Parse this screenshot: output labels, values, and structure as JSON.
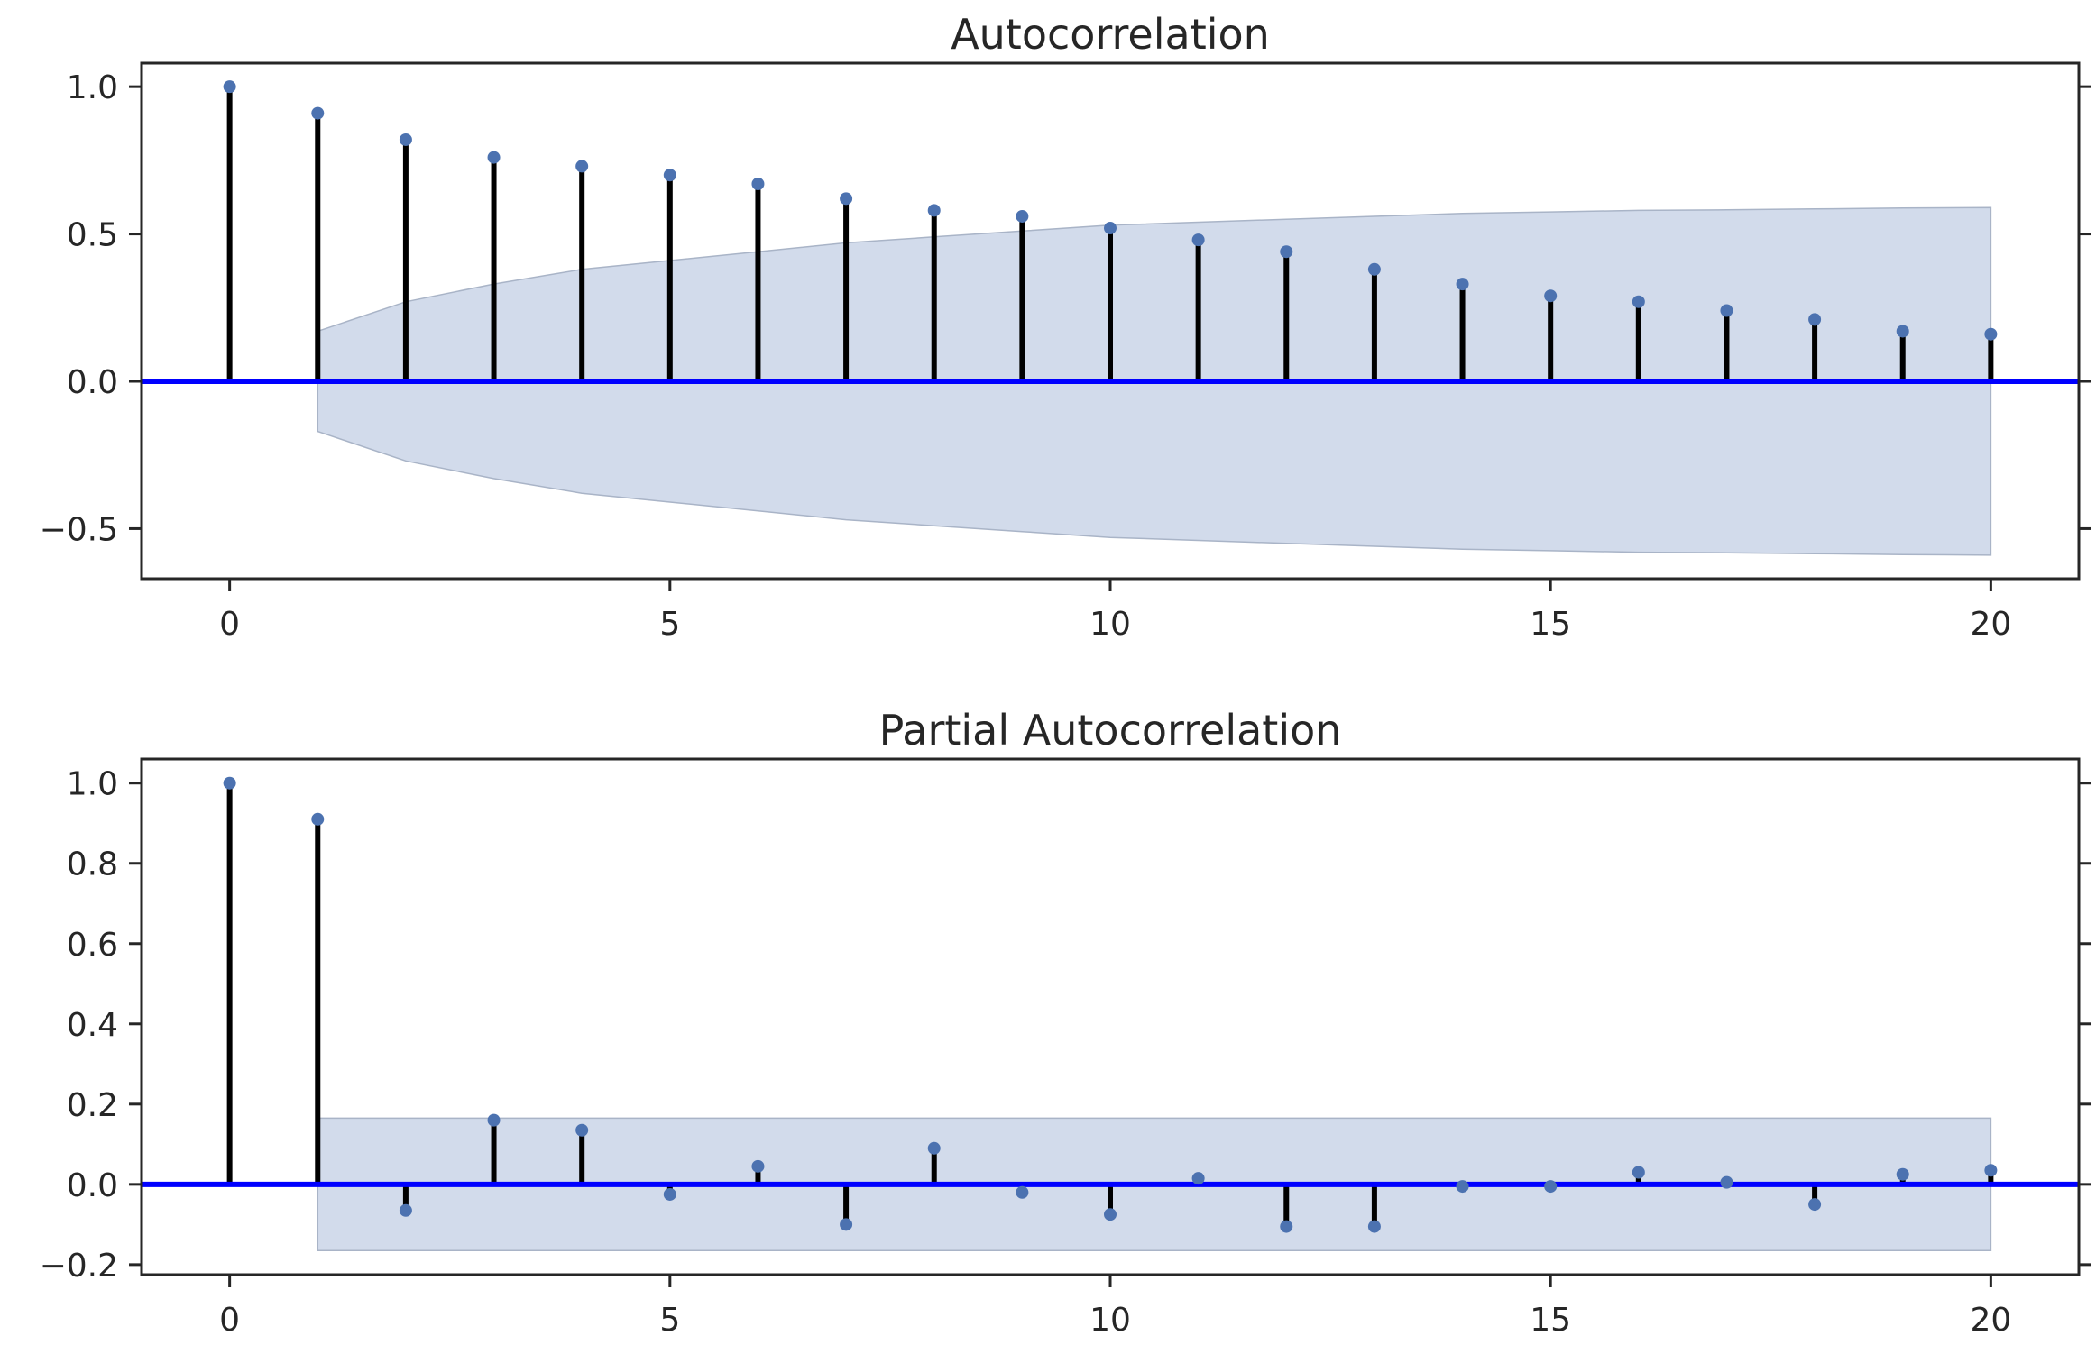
{
  "chart_data": [
    {
      "type": "stem",
      "title": "Autocorrelation",
      "xlabel": "",
      "ylabel": "",
      "xlim": [
        -1,
        21
      ],
      "ylim": [
        -0.67,
        1.08
      ],
      "xticks": [
        0,
        5,
        10,
        15,
        20
      ],
      "xtick_labels": [
        "0",
        "5",
        "10",
        "15",
        "20"
      ],
      "yticks": [
        -0.5,
        0.0,
        0.5,
        1.0
      ],
      "ytick_labels": [
        "−0.5",
        "0.0",
        "0.5",
        "1.0"
      ],
      "grid": false,
      "lags": [
        0,
        1,
        2,
        3,
        4,
        5,
        6,
        7,
        8,
        9,
        10,
        11,
        12,
        13,
        14,
        15,
        16,
        17,
        18,
        19,
        20
      ],
      "values": [
        1.0,
        0.91,
        0.82,
        0.76,
        0.73,
        0.7,
        0.67,
        0.62,
        0.58,
        0.56,
        0.52,
        0.48,
        0.44,
        0.38,
        0.33,
        0.29,
        0.27,
        0.24,
        0.21,
        0.17,
        0.16
      ],
      "confidence_band": {
        "lags": [
          1,
          2,
          3,
          4,
          5,
          6,
          7,
          8,
          9,
          10,
          11,
          12,
          13,
          14,
          15,
          16,
          17,
          18,
          19,
          20
        ],
        "upper": [
          0.17,
          0.27,
          0.33,
          0.38,
          0.41,
          0.44,
          0.47,
          0.49,
          0.51,
          0.53,
          0.54,
          0.55,
          0.56,
          0.57,
          0.575,
          0.58,
          0.582,
          0.585,
          0.588,
          0.59
        ]
      }
    },
    {
      "type": "stem",
      "title": "Partial Autocorrelation",
      "xlabel": "",
      "ylabel": "",
      "xlim": [
        -1,
        21
      ],
      "ylim": [
        -0.225,
        1.06
      ],
      "xticks": [
        0,
        5,
        10,
        15,
        20
      ],
      "xtick_labels": [
        "0",
        "5",
        "10",
        "15",
        "20"
      ],
      "yticks": [
        -0.2,
        0.0,
        0.2,
        0.4,
        0.6,
        0.8,
        1.0
      ],
      "ytick_labels": [
        "−0.2",
        "0.0",
        "0.2",
        "0.4",
        "0.6",
        "0.8",
        "1.0"
      ],
      "grid": false,
      "lags": [
        0,
        1,
        2,
        3,
        4,
        5,
        6,
        7,
        8,
        9,
        10,
        11,
        12,
        13,
        14,
        15,
        16,
        17,
        18,
        19,
        20
      ],
      "values": [
        1.0,
        0.91,
        -0.065,
        0.16,
        0.135,
        -0.025,
        0.045,
        -0.1,
        0.09,
        -0.02,
        -0.075,
        0.015,
        -0.105,
        -0.105,
        -0.005,
        -0.005,
        0.03,
        0.005,
        -0.05,
        0.025,
        0.035
      ],
      "confidence_band": {
        "lags": [
          1,
          20
        ],
        "upper": [
          0.165,
          0.165
        ]
      }
    }
  ],
  "colors": {
    "marker": "#4c72b0",
    "stem": "#000000",
    "zero_line": "#0000ff",
    "band_fill": "#d2dbeb",
    "band_edge": "#a9b4c7",
    "axes": "#262626"
  }
}
